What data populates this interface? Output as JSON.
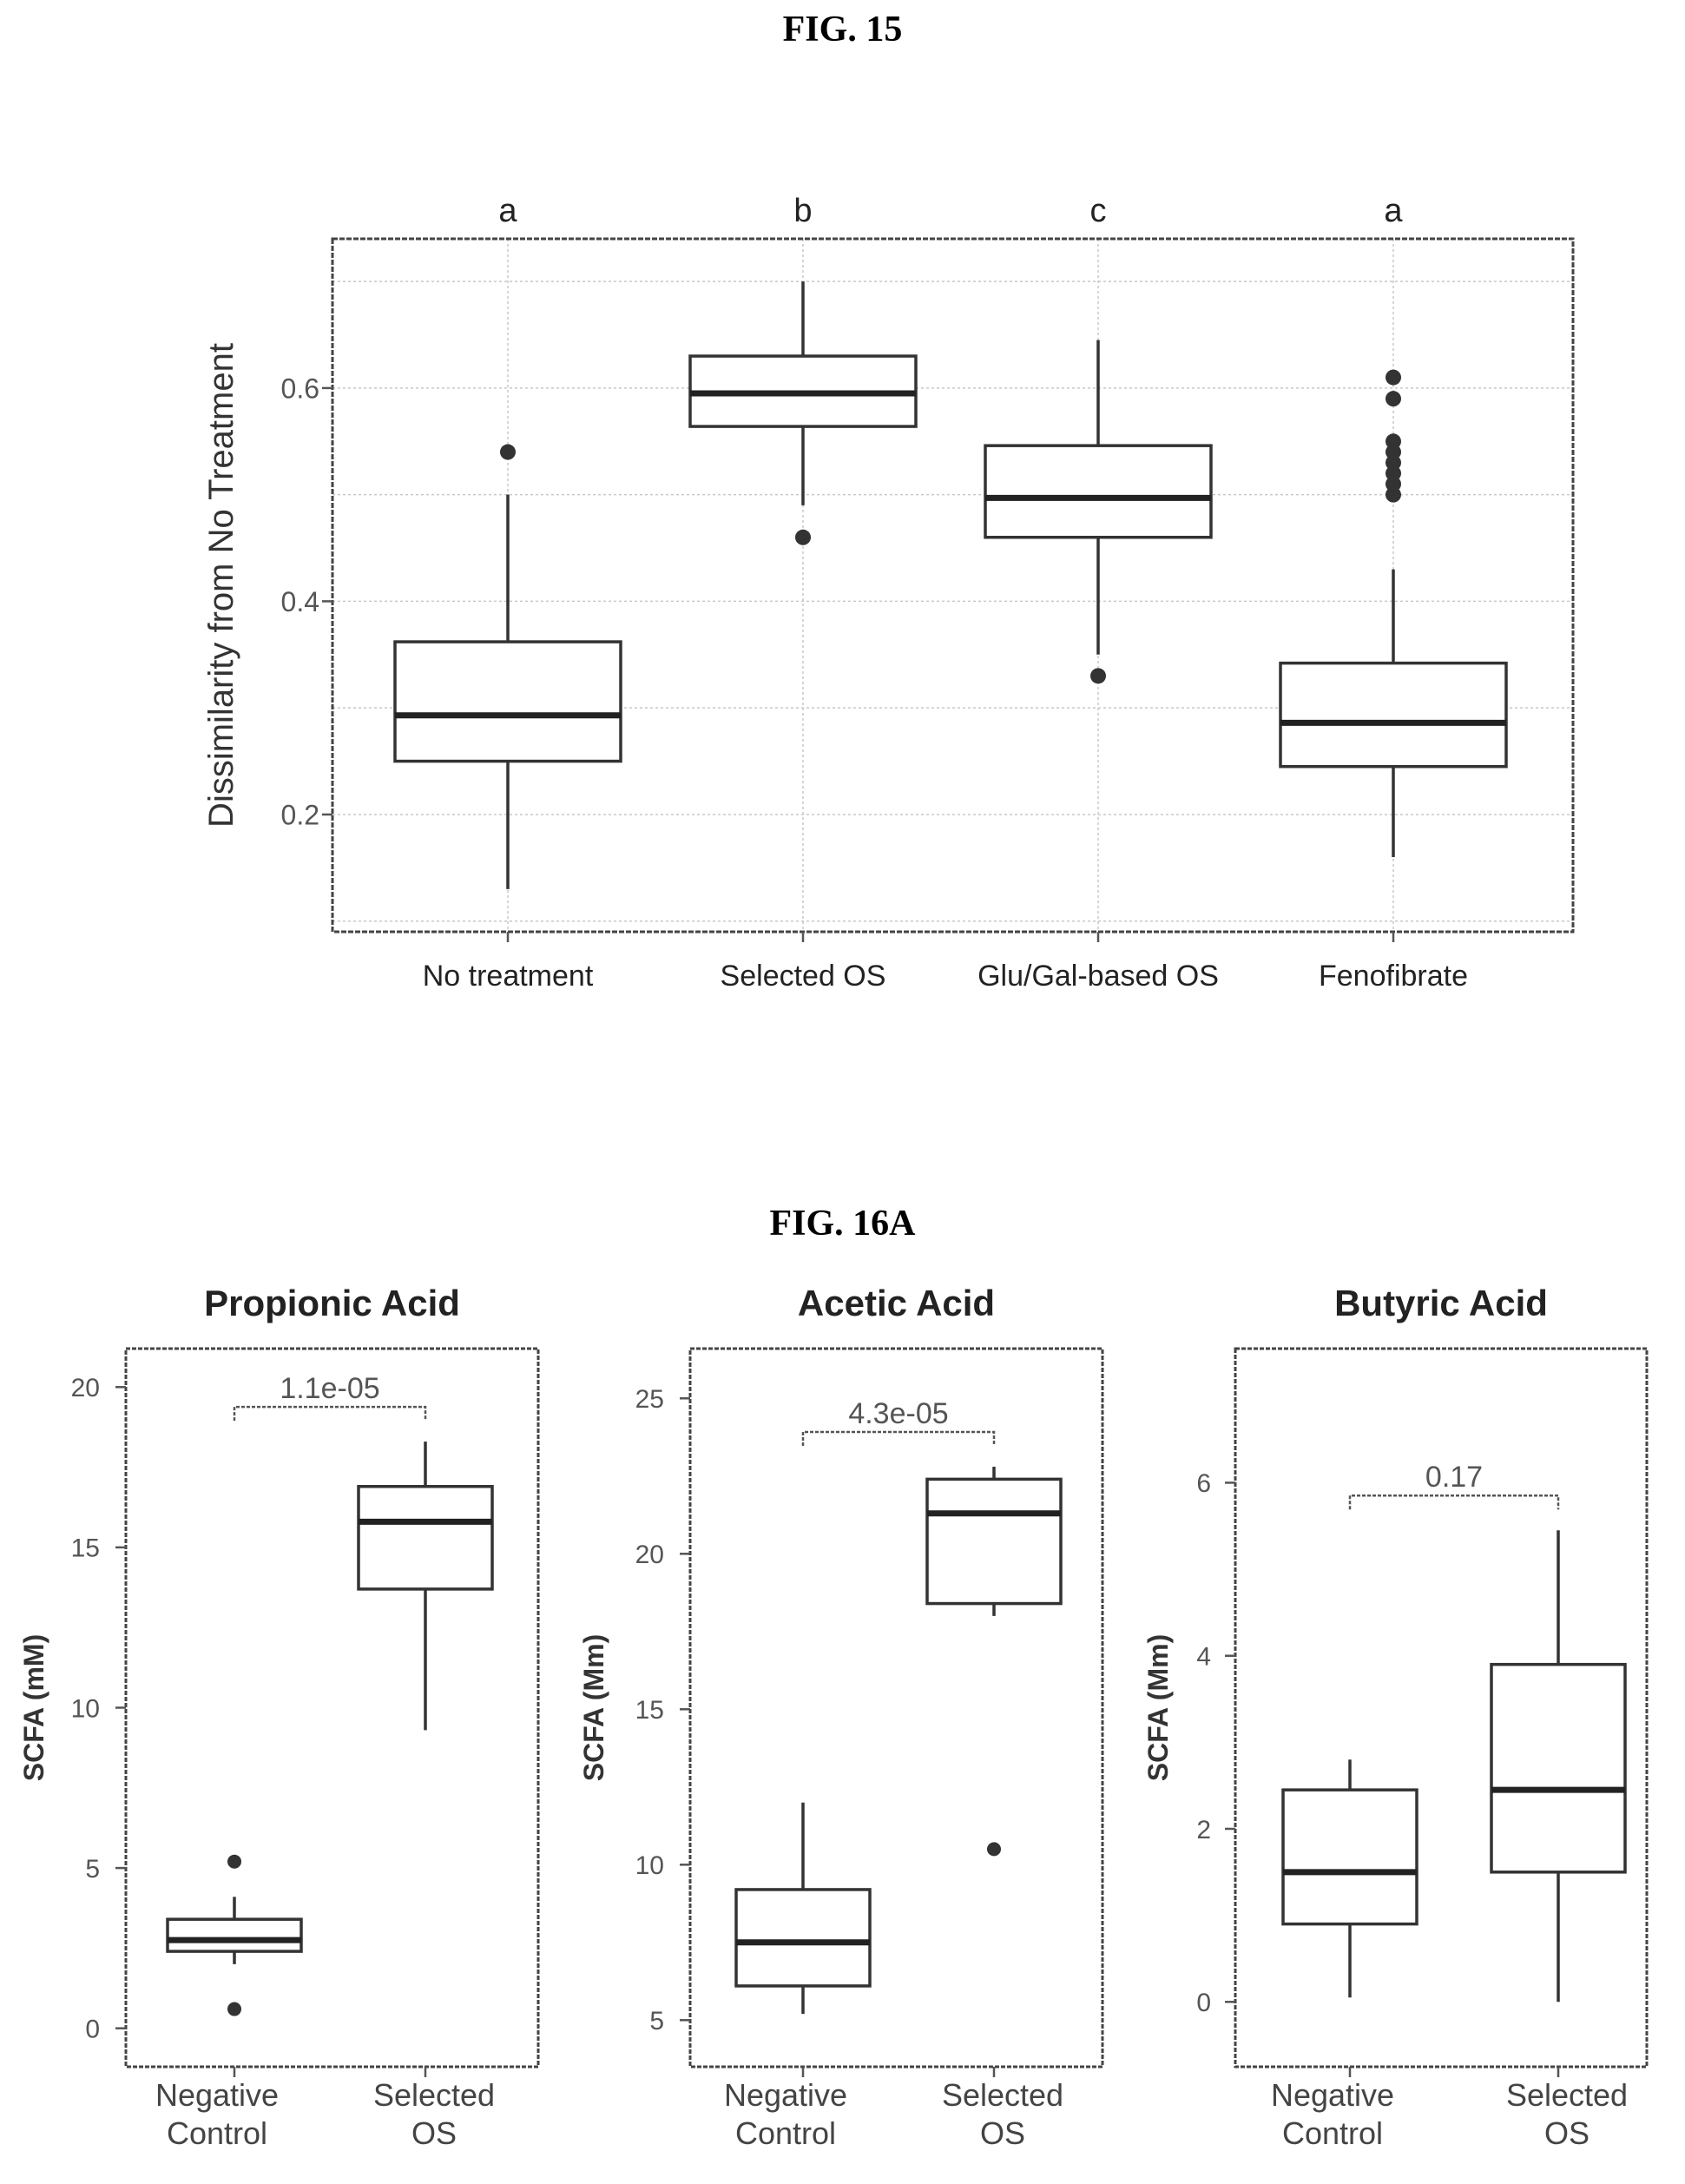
{
  "fig15": {
    "label": "FIG. 15"
  },
  "fig16": {
    "label": "FIG. 16A"
  },
  "chart_data": [
    {
      "type": "box",
      "title": "",
      "xlabel": "",
      "ylabel": "Dissimilarity from No Treatment",
      "yticks": [
        0.2,
        0.4,
        0.6
      ],
      "ylim": [
        0.09,
        0.74
      ],
      "grid": true,
      "categories": [
        "No treatment",
        "Selected OS",
        "Glu/Gal-based OS",
        "Fenofibrate"
      ],
      "group_letters": [
        "a",
        "b",
        "c",
        "a"
      ],
      "boxes": [
        {
          "min": 0.13,
          "q1": 0.25,
          "median": 0.293,
          "q3": 0.362,
          "max": 0.5,
          "outliers": [
            0.54
          ]
        },
        {
          "min": 0.49,
          "q1": 0.564,
          "median": 0.595,
          "q3": 0.63,
          "max": 0.7,
          "outliers": [
            0.46
          ]
        },
        {
          "min": 0.35,
          "q1": 0.46,
          "median": 0.497,
          "q3": 0.546,
          "max": 0.645,
          "outliers": [
            0.33
          ]
        },
        {
          "min": 0.16,
          "q1": 0.245,
          "median": 0.286,
          "q3": 0.342,
          "max": 0.43,
          "outliers": [
            0.5,
            0.51,
            0.52,
            0.53,
            0.54,
            0.55,
            0.59,
            0.61
          ]
        }
      ]
    },
    {
      "type": "box",
      "title": "Propionic Acid",
      "xlabel": "",
      "ylabel": "SCFA  (mM)",
      "yticks": [
        0,
        5,
        10,
        15,
        20
      ],
      "ylim": [
        -1.2,
        21.2
      ],
      "categories": [
        "Negative Control",
        "Selected OS"
      ],
      "pvalue": "1.1e-05",
      "boxes": [
        {
          "min": 2.0,
          "q1": 2.4,
          "median": 2.75,
          "q3": 3.4,
          "max": 4.1,
          "outliers": [
            0.6,
            5.2
          ]
        },
        {
          "min": 9.3,
          "q1": 13.7,
          "median": 15.8,
          "q3": 16.9,
          "max": 18.3,
          "outliers": []
        }
      ]
    },
    {
      "type": "box",
      "title": "Acetic Acid",
      "xlabel": "",
      "ylabel": "SCFA (Mm)",
      "yticks": [
        5,
        10,
        15,
        20,
        25
      ],
      "ylim": [
        3.5,
        26.6
      ],
      "categories": [
        "Negative Control",
        "Selected OS"
      ],
      "pvalue": "4.3e-05",
      "boxes": [
        {
          "min": 5.2,
          "q1": 6.1,
          "median": 7.5,
          "q3": 9.2,
          "max": 12.0,
          "outliers": []
        },
        {
          "min": 18.0,
          "q1": 18.4,
          "median": 21.3,
          "q3": 22.4,
          "max": 22.8,
          "outliers": [
            10.5
          ]
        }
      ]
    },
    {
      "type": "box",
      "title": "Butyric Acid",
      "xlabel": "",
      "ylabel": "SCFA (Mm)",
      "yticks": [
        0,
        2,
        4,
        6
      ],
      "ylim": [
        -0.75,
        7.55
      ],
      "categories": [
        "Negative Control",
        "Selected OS"
      ],
      "pvalue": "0.17",
      "boxes": [
        {
          "min": 0.05,
          "q1": 0.9,
          "median": 1.5,
          "q3": 2.45,
          "max": 2.8,
          "outliers": []
        },
        {
          "min": 0.0,
          "q1": 1.5,
          "median": 2.45,
          "q3": 3.9,
          "max": 5.45,
          "outliers": []
        }
      ]
    }
  ]
}
